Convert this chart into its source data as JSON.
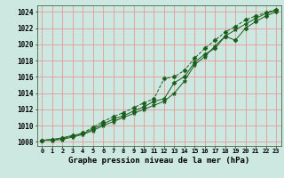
{
  "title": "Graphe pression niveau de la mer (hPa)",
  "bg_color": "#cce8e0",
  "grid_color": "#e89898",
  "line_color": "#1a5c1a",
  "marker_color": "#1a5c1a",
  "xlim": [
    -0.5,
    23.5
  ],
  "ylim": [
    1007.5,
    1024.8
  ],
  "yticks": [
    1008,
    1010,
    1012,
    1014,
    1016,
    1018,
    1020,
    1022,
    1024
  ],
  "xticks": [
    0,
    1,
    2,
    3,
    4,
    5,
    6,
    7,
    8,
    9,
    10,
    11,
    12,
    13,
    14,
    15,
    16,
    17,
    18,
    19,
    20,
    21,
    22,
    23
  ],
  "series": [
    [
      1008.2,
      1008.3,
      1008.5,
      1008.8,
      1009.0,
      1009.6,
      1010.2,
      1010.8,
      1011.2,
      1011.8,
      1012.3,
      1013.0,
      1013.3,
      1015.3,
      1016.0,
      1017.8,
      1018.8,
      1019.5,
      1021.0,
      1020.5,
      1022.0,
      1022.8,
      1023.5,
      1024.0
    ],
    [
      1008.2,
      1008.2,
      1008.3,
      1008.6,
      1008.9,
      1009.4,
      1010.0,
      1010.5,
      1011.0,
      1011.5,
      1012.0,
      1012.5,
      1013.0,
      1014.0,
      1015.5,
      1017.5,
      1018.5,
      1019.8,
      1021.0,
      1021.8,
      1022.5,
      1023.2,
      1023.8,
      1024.2
    ],
    [
      1008.2,
      1008.3,
      1008.4,
      1008.7,
      1009.1,
      1009.8,
      1010.5,
      1011.1,
      1011.6,
      1012.2,
      1012.8,
      1013.3,
      1015.8,
      1016.0,
      1016.8,
      1018.3,
      1019.5,
      1020.5,
      1021.5,
      1022.2,
      1023.0,
      1023.5,
      1023.9,
      1024.3
    ]
  ]
}
